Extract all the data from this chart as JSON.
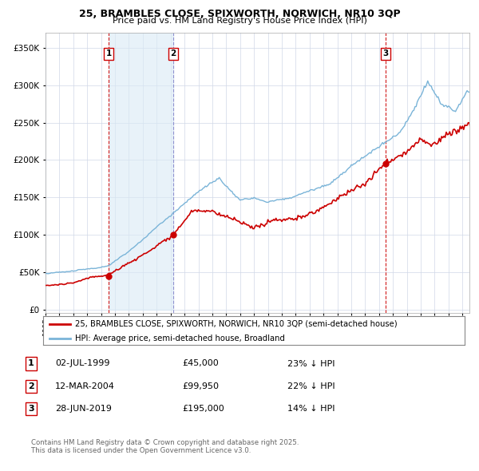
{
  "title_line1": "25, BRAMBLES CLOSE, SPIXWORTH, NORWICH, NR10 3QP",
  "title_line2": "Price paid vs. HM Land Registry's House Price Index (HPI)",
  "yticks": [
    0,
    50000,
    100000,
    150000,
    200000,
    250000,
    300000,
    350000
  ],
  "ytick_labels": [
    "£0",
    "£50K",
    "£100K",
    "£150K",
    "£200K",
    "£250K",
    "£300K",
    "£350K"
  ],
  "xlim_start": 1995.0,
  "xlim_end": 2025.5,
  "ylim_min": -5000,
  "ylim_max": 370000,
  "sale_dates": [
    1999.54,
    2004.19,
    2019.49
  ],
  "sale_prices": [
    45000,
    99950,
    195000
  ],
  "sale_labels": [
    "1",
    "2",
    "3"
  ],
  "hpi_color": "#7ab4d8",
  "hpi_fill_color": "#daeaf5",
  "price_color": "#cc0000",
  "marker_color_sale": "#cc0000",
  "dashed_line_color_red": "#cc0000",
  "dashed_line_color_blue": "#8888cc",
  "legend_line1": "25, BRAMBLES CLOSE, SPIXWORTH, NORWICH, NR10 3QP (semi-detached house)",
  "legend_line2": "HPI: Average price, semi-detached house, Broadland",
  "table_entries": [
    {
      "num": "1",
      "date": "02-JUL-1999",
      "price": "£45,000",
      "pct": "23% ↓ HPI"
    },
    {
      "num": "2",
      "date": "12-MAR-2004",
      "price": "£99,950",
      "pct": "22% ↓ HPI"
    },
    {
      "num": "3",
      "date": "28-JUN-2019",
      "price": "£195,000",
      "pct": "14% ↓ HPI"
    }
  ],
  "footer": "Contains HM Land Registry data © Crown copyright and database right 2025.\nThis data is licensed under the Open Government Licence v3.0.",
  "background_color": "#ffffff",
  "plot_bg_color": "#ffffff",
  "grid_color": "#d0d8e8"
}
